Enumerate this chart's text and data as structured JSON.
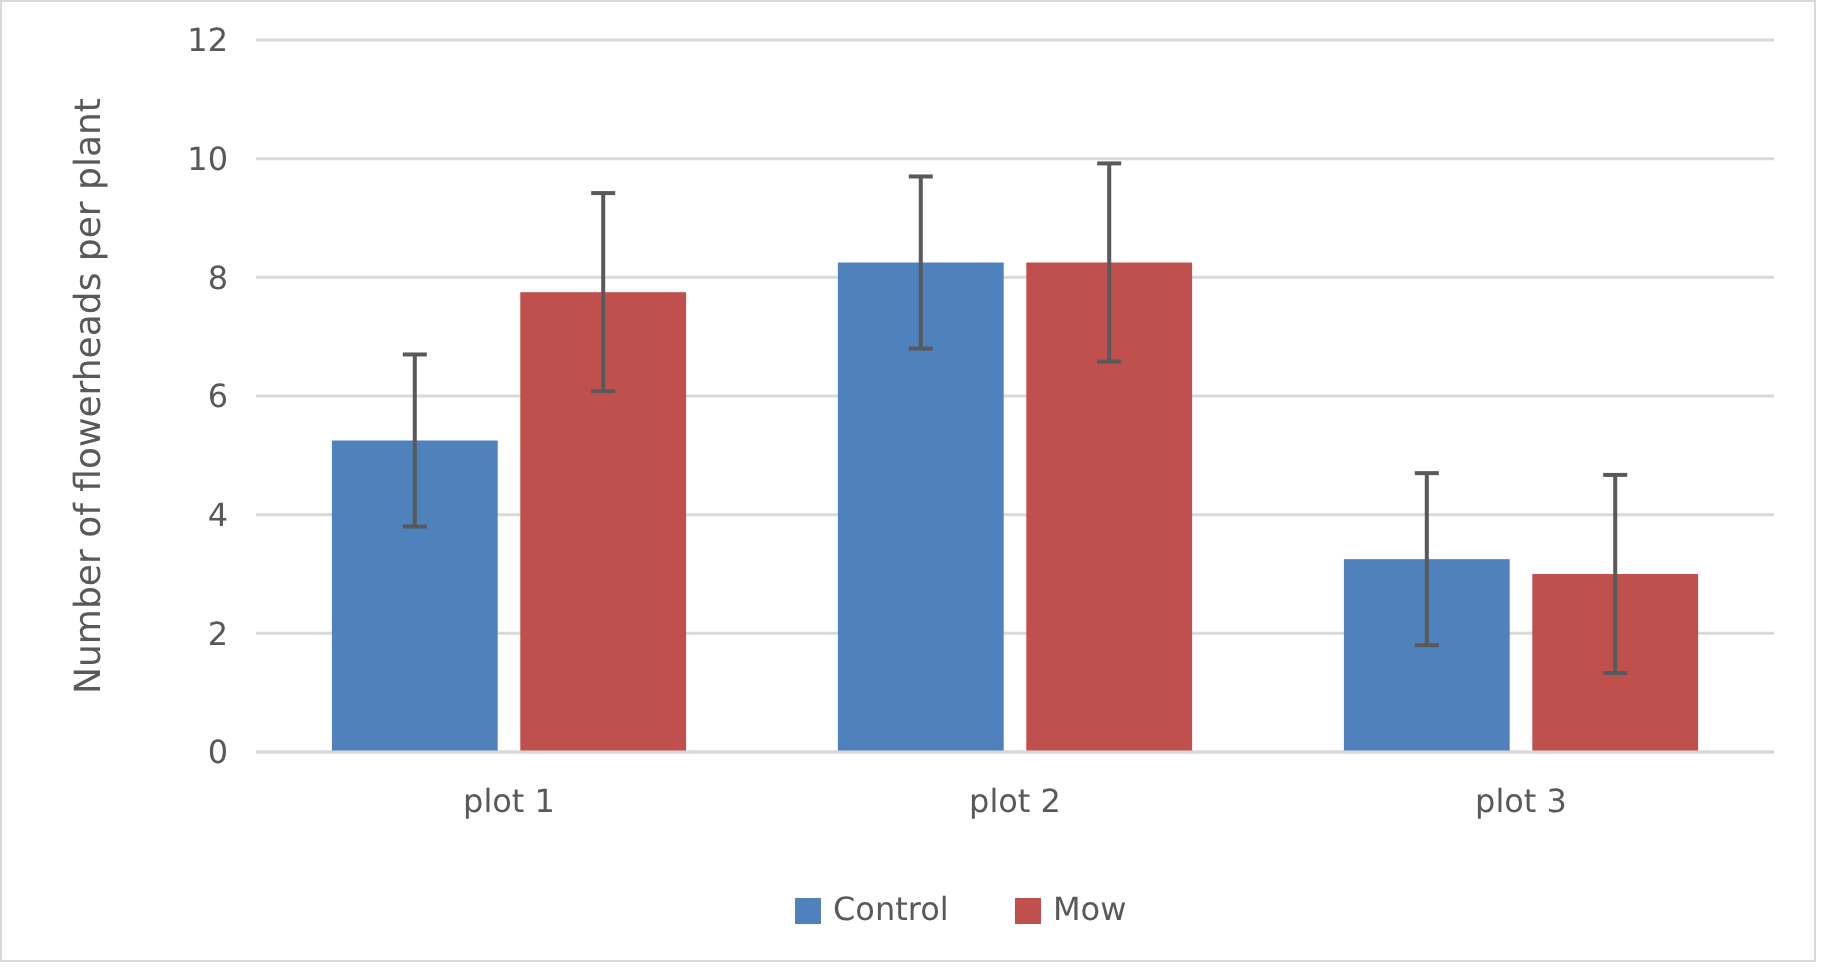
{
  "chart_data": {
    "type": "bar",
    "ylabel": "Number of flowerheads per plant",
    "categories": [
      "plot 1",
      "plot 2",
      "plot 3"
    ],
    "series": [
      {
        "name": "Control",
        "color": "#4f81bd",
        "values": [
          5.25,
          8.25,
          3.25
        ],
        "errors": [
          1.45,
          1.45,
          1.45
        ]
      },
      {
        "name": "Mow",
        "color": "#c0504d",
        "values": [
          7.75,
          8.25,
          3.0
        ],
        "errors": [
          1.67,
          1.67,
          1.67
        ]
      }
    ],
    "ylim": [
      0,
      12
    ],
    "yticks": [
      0,
      2,
      4,
      6,
      8,
      10,
      12
    ],
    "grid": "y",
    "legend": "bottom"
  }
}
